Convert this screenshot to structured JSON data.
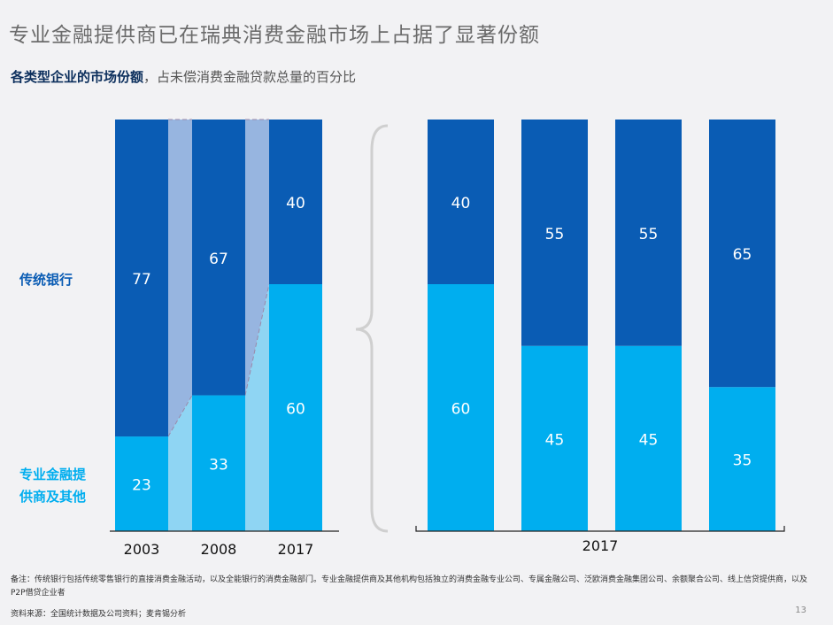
{
  "header": {
    "title": "专业金融提供商已在瑞典消费金融市场上占据了显著份额",
    "subtitle_bold": "各类型企业的市场份额",
    "subtitle_rest": "，占未偿消费金融贷款总量的百分比"
  },
  "legend_labels": {
    "traditional": "传统银行",
    "specialist": "专业金融提供商及其他"
  },
  "colors": {
    "traditional": "#0a5cb4",
    "specialist": "#00aeef",
    "connector_traditional": "#97b5e0",
    "connector_specialist": "#8fd5f3"
  },
  "chart_data": [
    {
      "type": "bar",
      "stacked": true,
      "categories": [
        "2003",
        "2008",
        "2017"
      ],
      "series": [
        {
          "name": "专业金融提供商及其他",
          "values": [
            23,
            33,
            60
          ]
        },
        {
          "name": "传统银行",
          "values": [
            77,
            67,
            40
          ]
        }
      ],
      "ylim": [
        0,
        100
      ]
    },
    {
      "type": "bar",
      "stacked": true,
      "xlabel": "2017",
      "categories": [
        "",
        "",
        "",
        ""
      ],
      "series": [
        {
          "name": "专业金融提供商及其他",
          "values": [
            60,
            45,
            45,
            35
          ]
        },
        {
          "name": "传统银行",
          "values": [
            40,
            55,
            55,
            65
          ]
        }
      ],
      "ylim": [
        0,
        100
      ]
    }
  ],
  "footer": {
    "note": "备注：传统银行包括传统零售银行的直接消费金融活动，以及全能银行的消费金融部门。专业金融提供商及其他机构包括独立的消费金融专业公司、专属金融公司、泛欧消费金融集团公司、余额聚合公司、线上信贷提供商，以及P2P借贷企业者",
    "source": "资料来源：全国统计数据及公司资料；麦肯锡分析",
    "page": "13"
  }
}
